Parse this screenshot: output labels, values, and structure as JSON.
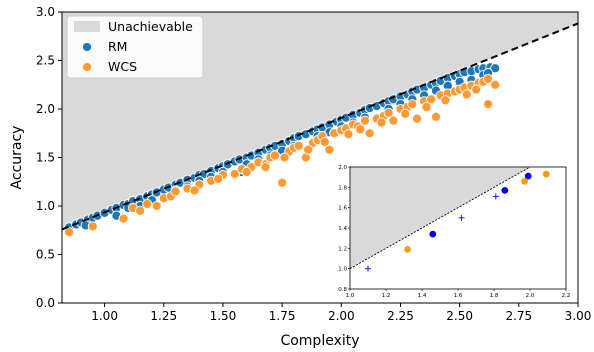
{
  "chart_data": [
    {
      "type": "scatter",
      "xlabel": "Complexity",
      "ylabel": "Accuracy",
      "xlim": [
        0.82,
        3.0
      ],
      "ylim": [
        0.0,
        3.0
      ],
      "xticks": [
        "1.00",
        "1.25",
        "1.50",
        "1.75",
        "2.00",
        "2.25",
        "2.50",
        "2.75",
        "3.00"
      ],
      "yticks": [
        "0.0",
        "0.5",
        "1.0",
        "1.5",
        "2.0",
        "2.5",
        "3.0"
      ],
      "grid": false,
      "legend": "top-left",
      "bound": {
        "label": "",
        "slope": 0.974,
        "intercept": -0.04,
        "style": "dashed"
      },
      "unachievable_region": {
        "label": "Unachievable",
        "color": "#d9d9d9"
      },
      "series": [
        {
          "name": "RM",
          "color": "#1f77b4",
          "note": "dense band just below the bound",
          "points": [
            [
              0.85,
              0.78
            ],
            [
              0.88,
              0.81
            ],
            [
              0.9,
              0.83
            ],
            [
              0.93,
              0.86
            ],
            [
              0.95,
              0.88
            ],
            [
              0.97,
              0.9
            ],
            [
              1.0,
              0.93
            ],
            [
              1.03,
              0.96
            ],
            [
              1.05,
              0.98
            ],
            [
              1.08,
              1.01
            ],
            [
              1.1,
              1.02
            ],
            [
              1.12,
              1.05
            ],
            [
              1.15,
              1.07
            ],
            [
              1.18,
              1.1
            ],
            [
              1.2,
              1.12
            ],
            [
              1.22,
              1.14
            ],
            [
              1.25,
              1.17
            ],
            [
              1.27,
              1.19
            ],
            [
              1.3,
              1.22
            ],
            [
              1.32,
              1.24
            ],
            [
              1.35,
              1.27
            ],
            [
              1.38,
              1.29
            ],
            [
              1.4,
              1.32
            ],
            [
              1.42,
              1.33
            ],
            [
              1.45,
              1.36
            ],
            [
              1.48,
              1.39
            ],
            [
              1.5,
              1.41
            ],
            [
              1.52,
              1.43
            ],
            [
              1.55,
              1.46
            ],
            [
              1.57,
              1.48
            ],
            [
              1.6,
              1.5
            ],
            [
              1.62,
              1.52
            ],
            [
              1.65,
              1.55
            ],
            [
              1.68,
              1.58
            ],
            [
              1.7,
              1.6
            ],
            [
              1.72,
              1.62
            ],
            [
              1.75,
              1.64
            ],
            [
              1.78,
              1.67
            ],
            [
              1.8,
              1.7
            ],
            [
              1.82,
              1.72
            ],
            [
              1.85,
              1.74
            ],
            [
              1.88,
              1.77
            ],
            [
              1.9,
              1.79
            ],
            [
              1.92,
              1.81
            ],
            [
              1.95,
              1.84
            ],
            [
              1.98,
              1.87
            ],
            [
              2.0,
              1.89
            ],
            [
              2.02,
              1.91
            ],
            [
              2.05,
              1.94
            ],
            [
              2.08,
              1.96
            ],
            [
              2.1,
              1.99
            ],
            [
              2.12,
              2.01
            ],
            [
              2.15,
              2.03
            ],
            [
              2.18,
              2.06
            ],
            [
              2.2,
              2.08
            ],
            [
              2.22,
              2.1
            ],
            [
              2.25,
              2.13
            ],
            [
              2.28,
              2.15
            ],
            [
              2.3,
              2.18
            ],
            [
              2.32,
              2.2
            ],
            [
              2.35,
              2.22
            ],
            [
              2.38,
              2.25
            ],
            [
              2.4,
              2.27
            ],
            [
              2.42,
              2.29
            ],
            [
              2.45,
              2.32
            ],
            [
              2.48,
              2.34
            ],
            [
              2.5,
              2.36
            ],
            [
              2.52,
              2.38
            ],
            [
              2.55,
              2.39
            ],
            [
              2.58,
              2.41
            ],
            [
              2.6,
              2.42
            ],
            [
              2.63,
              2.43
            ],
            [
              2.65,
              2.42
            ],
            [
              1.1,
              0.98
            ],
            [
              1.2,
              1.06
            ],
            [
              1.3,
              1.16
            ],
            [
              1.4,
              1.26
            ],
            [
              1.5,
              1.35
            ],
            [
              1.6,
              1.43
            ],
            [
              1.7,
              1.52
            ],
            [
              1.8,
              1.62
            ],
            [
              1.9,
              1.72
            ],
            [
              2.0,
              1.82
            ],
            [
              2.1,
              1.91
            ],
            [
              2.2,
              2.0
            ],
            [
              2.3,
              2.1
            ],
            [
              2.4,
              2.19
            ],
            [
              2.5,
              2.28
            ],
            [
              2.6,
              2.35
            ],
            [
              1.58,
              1.35
            ],
            [
              1.15,
              1.0
            ],
            [
              1.45,
              1.3
            ],
            [
              1.75,
              1.57
            ],
            [
              2.05,
              1.86
            ],
            [
              2.35,
              2.14
            ],
            [
              2.55,
              2.3
            ],
            [
              1.35,
              1.2
            ],
            [
              1.65,
              1.48
            ],
            [
              1.95,
              1.76
            ],
            [
              2.25,
              2.05
            ],
            [
              2.45,
              2.24
            ],
            [
              2.62,
              2.37
            ],
            [
              0.92,
              0.8
            ],
            [
              1.05,
              0.9
            ]
          ]
        },
        {
          "name": "WCS",
          "color": "#ff9933",
          "note": "more scattered, slightly lower",
          "points": [
            [
              0.85,
              0.73
            ],
            [
              0.95,
              0.79
            ],
            [
              1.08,
              0.87
            ],
            [
              1.12,
              0.98
            ],
            [
              1.18,
              1.02
            ],
            [
              1.22,
              1.0
            ],
            [
              1.25,
              1.08
            ],
            [
              1.28,
              1.1
            ],
            [
              1.3,
              1.15
            ],
            [
              1.35,
              1.18
            ],
            [
              1.4,
              1.22
            ],
            [
              1.45,
              1.26
            ],
            [
              1.5,
              1.32
            ],
            [
              1.55,
              1.33
            ],
            [
              1.58,
              1.38
            ],
            [
              1.62,
              1.4
            ],
            [
              1.65,
              1.45
            ],
            [
              1.68,
              1.43
            ],
            [
              1.7,
              1.5
            ],
            [
              1.72,
              1.52
            ],
            [
              1.75,
              1.24
            ],
            [
              1.78,
              1.56
            ],
            [
              1.8,
              1.6
            ],
            [
              1.82,
              1.62
            ],
            [
              1.85,
              1.5
            ],
            [
              1.88,
              1.65
            ],
            [
              1.9,
              1.68
            ],
            [
              1.92,
              1.72
            ],
            [
              1.95,
              1.58
            ],
            [
              1.97,
              1.75
            ],
            [
              2.0,
              1.78
            ],
            [
              2.02,
              1.8
            ],
            [
              2.05,
              1.84
            ],
            [
              2.07,
              1.82
            ],
            [
              2.1,
              1.88
            ],
            [
              2.12,
              1.75
            ],
            [
              2.15,
              1.9
            ],
            [
              2.18,
              1.93
            ],
            [
              2.2,
              1.96
            ],
            [
              2.22,
              1.88
            ],
            [
              2.25,
              2.0
            ],
            [
              2.28,
              2.02
            ],
            [
              2.3,
              2.05
            ],
            [
              2.32,
              1.9
            ],
            [
              2.35,
              2.08
            ],
            [
              2.38,
              2.1
            ],
            [
              2.4,
              1.92
            ],
            [
              2.42,
              2.14
            ],
            [
              2.45,
              2.16
            ],
            [
              2.48,
              2.18
            ],
            [
              2.5,
              2.2
            ],
            [
              2.52,
              2.22
            ],
            [
              2.55,
              2.24
            ],
            [
              2.58,
              2.27
            ],
            [
              2.6,
              2.28
            ],
            [
              2.62,
              2.05
            ],
            [
              2.65,
              2.25
            ],
            [
              1.15,
              0.95
            ],
            [
              1.38,
              1.16
            ],
            [
              1.6,
              1.35
            ],
            [
              1.76,
              1.5
            ],
            [
              1.93,
              1.66
            ],
            [
              2.08,
              1.79
            ],
            [
              2.27,
              1.95
            ],
            [
              2.44,
              2.09
            ],
            [
              2.57,
              2.2
            ],
            [
              2.62,
              2.31
            ],
            [
              1.48,
              1.28
            ],
            [
              1.68,
              1.4
            ],
            [
              1.86,
              1.58
            ],
            [
              2.03,
              1.74
            ],
            [
              2.17,
              1.86
            ],
            [
              2.36,
              2.02
            ],
            [
              2.53,
              2.15
            ]
          ]
        }
      ]
    },
    {
      "type": "scatter",
      "xlim": [
        1.0,
        2.2
      ],
      "ylim": [
        0.8,
        2.0
      ],
      "xticks": [
        "1.0",
        "1.2",
        "1.4",
        "1.6",
        "1.8",
        "2.0",
        "2.2"
      ],
      "yticks": [
        "0.8",
        "1.0",
        "1.2",
        "1.4",
        "1.6",
        "1.8",
        "2.0"
      ],
      "bound": {
        "slope": 1.0,
        "intercept": 0.0,
        "style": "dotted"
      },
      "unachievable_region": {
        "color": "#d9d9d9"
      },
      "series": [
        {
          "name": "",
          "marker": "plus",
          "color": "#0000ee",
          "points": [
            [
              1.1,
              1.0
            ],
            [
              1.62,
              1.5
            ],
            [
              1.81,
              1.71
            ]
          ]
        },
        {
          "name": "",
          "marker": "circle",
          "color": "#0000ee",
          "points": [
            [
              1.46,
              1.34
            ],
            [
              1.86,
              1.77
            ],
            [
              1.99,
              1.91
            ]
          ]
        },
        {
          "name": "",
          "marker": "circle",
          "color": "#f59b14",
          "points": [
            [
              1.32,
              1.19
            ],
            [
              1.97,
              1.86
            ],
            [
              2.09,
              1.93
            ]
          ]
        }
      ]
    }
  ]
}
